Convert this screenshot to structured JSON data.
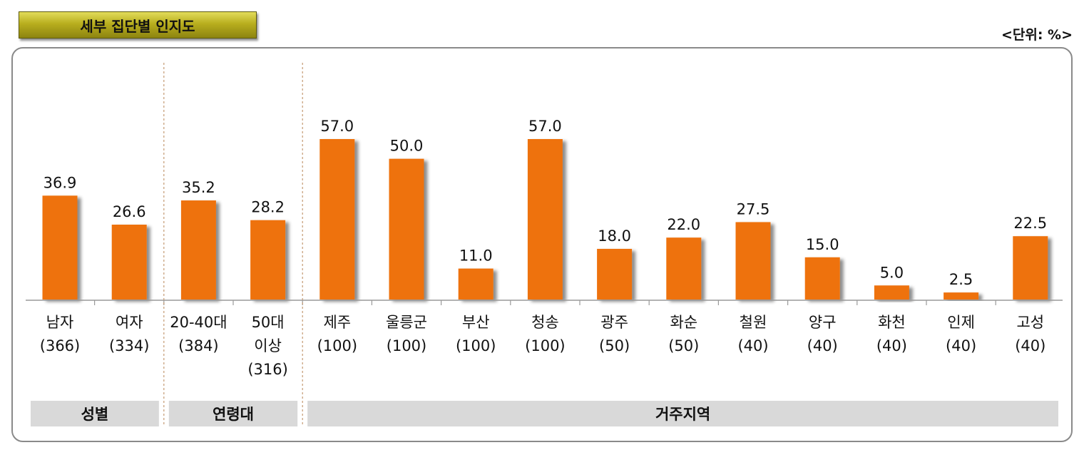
{
  "header": {
    "title": "세부 집단별 인지도",
    "unit": "<단위: %>"
  },
  "colors": {
    "bar": "#ee7210",
    "group_band": "#d9d9d9",
    "title_gold": "#b8ae1e"
  },
  "chart_data": {
    "type": "bar",
    "title": "세부 집단별 인지도",
    "ylabel": "",
    "xlabel": "",
    "ylim": [
      0,
      60
    ],
    "grid": false,
    "categories": [
      {
        "name": "남자",
        "n": "(366)",
        "group": "gender"
      },
      {
        "name": "여자",
        "n": "(334)",
        "group": "gender"
      },
      {
        "name": "20-40대",
        "n": "(384)",
        "group": "age"
      },
      {
        "name": "50대 이상",
        "n": "(316)",
        "group": "age"
      },
      {
        "name": "제주",
        "n": "(100)",
        "group": "region"
      },
      {
        "name": "울릉군",
        "n": "(100)",
        "group": "region"
      },
      {
        "name": "부산",
        "n": "(100)",
        "group": "region"
      },
      {
        "name": "청송",
        "n": "(100)",
        "group": "region"
      },
      {
        "name": "광주",
        "n": "(50)",
        "group": "region"
      },
      {
        "name": "화순",
        "n": "(50)",
        "group": "region"
      },
      {
        "name": "철원",
        "n": "(40)",
        "group": "region"
      },
      {
        "name": "양구",
        "n": "(40)",
        "group": "region"
      },
      {
        "name": "화천",
        "n": "(40)",
        "group": "region"
      },
      {
        "name": "인제",
        "n": "(40)",
        "group": "region"
      },
      {
        "name": "고성",
        "n": "(40)",
        "group": "region"
      }
    ],
    "values": [
      36.9,
      26.6,
      35.2,
      28.2,
      57.0,
      50.0,
      11.0,
      57.0,
      18.0,
      22.0,
      27.5,
      15.0,
      5.0,
      2.5,
      22.5
    ],
    "groups": [
      {
        "key": "gender",
        "label": "성별"
      },
      {
        "key": "age",
        "label": "연령대"
      },
      {
        "key": "region",
        "label": "거주지역"
      }
    ]
  }
}
